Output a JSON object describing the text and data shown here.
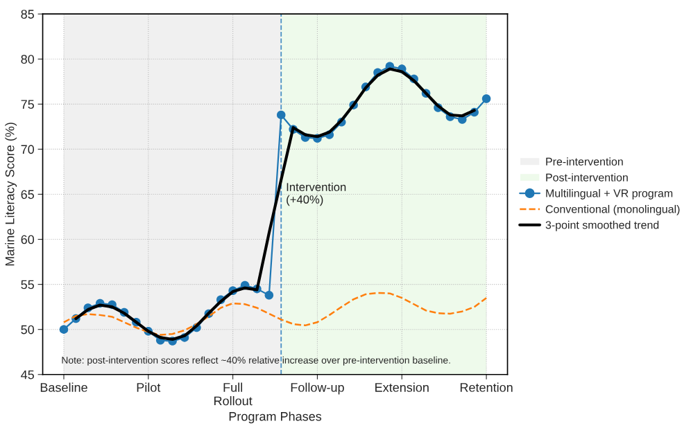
{
  "chart_data": {
    "type": "line",
    "xlabel": "Program Phases",
    "ylabel": "Marine Literacy Score (%)",
    "categories": [
      "Baseline",
      null,
      null,
      null,
      null,
      null,
      null,
      "Pilot",
      null,
      null,
      null,
      null,
      null,
      null,
      "Full\nRollout",
      null,
      null,
      null,
      null,
      null,
      null,
      "Follow-up",
      null,
      null,
      null,
      null,
      null,
      null,
      "Extension",
      null,
      null,
      null,
      null,
      null,
      null,
      "Retention"
    ],
    "ylim": [
      45,
      85
    ],
    "yticks": [
      45,
      50,
      55,
      60,
      65,
      70,
      75,
      80,
      85
    ],
    "grid": true,
    "legend": "right",
    "series": [
      {
        "name": "Multilingual + VR program",
        "color": "#1f77b4",
        "marker": "circle",
        "line_style": "solid",
        "values": [
          50.0,
          51.2,
          52.4,
          52.9,
          52.75,
          51.9,
          50.8,
          49.8,
          48.8,
          48.7,
          49.1,
          50.2,
          51.75,
          53.3,
          54.3,
          54.9,
          54.5,
          53.8,
          73.8,
          72.2,
          71.3,
          71.2,
          71.6,
          73.0,
          74.9,
          76.9,
          78.5,
          79.2,
          78.9,
          77.8,
          76.2,
          74.6,
          73.6,
          73.3,
          74.1,
          75.6
        ]
      },
      {
        "name": "Conventional (monolingual)",
        "color": "#ff7f0e",
        "marker": "none",
        "line_style": "dashed",
        "values": [
          50.8,
          51.5,
          51.7,
          51.6,
          51.4,
          50.8,
          50.2,
          49.7,
          49.4,
          49.5,
          49.9,
          50.6,
          51.45,
          52.4,
          52.9,
          52.8,
          52.4,
          51.75,
          51.1,
          50.6,
          50.45,
          50.8,
          51.6,
          52.5,
          53.35,
          53.9,
          54.05,
          54.0,
          53.5,
          52.8,
          52.1,
          51.8,
          51.75,
          52.0,
          52.5,
          53.5
        ]
      },
      {
        "name": "3-point smoothed trend",
        "color": "#000000",
        "marker": "none",
        "line_style": "solid",
        "values": [
          null,
          51.2,
          52.2,
          52.7,
          52.5,
          51.8,
          50.8,
          49.8,
          49.1,
          48.9,
          49.3,
          50.4,
          51.8,
          53.1,
          54.2,
          54.6,
          54.4,
          60.7,
          66.6,
          72.4,
          71.6,
          71.4,
          71.9,
          73.2,
          74.9,
          76.8,
          78.2,
          78.9,
          78.6,
          77.6,
          76.2,
          74.8,
          73.8,
          73.7,
          74.3,
          null
        ]
      }
    ],
    "annotations": [
      "Note: post-intervention scores reflect ~40% relative increase over pre-intervention baseline.",
      "Pre-intervention",
      "Post-intervention",
      "Intervention\n(+40%)"
    ]
  }
}
